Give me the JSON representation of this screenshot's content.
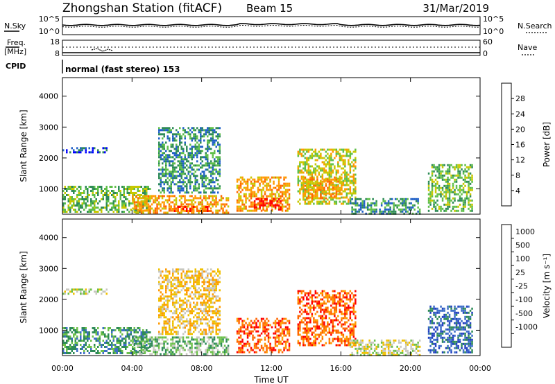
{
  "header": {
    "title": "Zhongshan Station (fitACF)",
    "beam": "Beam 15",
    "date": "31/Mar/2019"
  },
  "noise_panel": {
    "left_label": "N.Sky",
    "right_label": "N.Search",
    "left_top_tick": "10^5",
    "left_bottom_tick": "10^0",
    "right_top_tick": "10^5",
    "right_bottom_tick": "10^0"
  },
  "freq_panel": {
    "left_label_1": "Freq.",
    "left_label_2": "[MHz]",
    "left_top_tick": "18",
    "left_bottom_tick": "8",
    "right_label": "Nave",
    "right_top_tick": "60",
    "right_bottom_tick": "0"
  },
  "cpid_panel": {
    "label": "CPID",
    "text": "normal (fast stereo) 153"
  },
  "chart_data": [
    {
      "type": "heatmap",
      "title": "",
      "quantity": "Power",
      "ylabel": "Slant Range [km]",
      "xlabel": "",
      "ylim": [
        180,
        4600
      ],
      "yticks": [
        "1000",
        "2000",
        "3000",
        "4000"
      ],
      "colorbar_label": "Power [dB]",
      "colorbar_ticks": [
        "4",
        "8",
        "12",
        "16",
        "20",
        "24",
        "28"
      ],
      "colorbar_colors": [
        "#0000ff",
        "#2060c8",
        "#2e8b57",
        "#5fbf4a",
        "#c8c800",
        "#ff9900",
        "#ff6600",
        "#ff0000"
      ],
      "echo_regions": [
        {
          "t0": 0.0,
          "t1": 5.0,
          "r0": 250,
          "r1": 1100,
          "level": 3
        },
        {
          "t0": 0.0,
          "t1": 2.5,
          "r0": 2150,
          "r1": 2350,
          "level": 1
        },
        {
          "t0": 4.0,
          "t1": 9.5,
          "r0": 250,
          "r1": 800,
          "level": 5
        },
        {
          "t0": 6.0,
          "t1": 8.5,
          "r0": 250,
          "r1": 450,
          "level": 6
        },
        {
          "t0": 5.5,
          "t1": 9.0,
          "r0": 900,
          "r1": 3000,
          "level": 2
        },
        {
          "t0": 10.0,
          "t1": 13.0,
          "r0": 300,
          "r1": 1400,
          "level": 5
        },
        {
          "t0": 11.0,
          "t1": 12.5,
          "r0": 300,
          "r1": 700,
          "level": 7
        },
        {
          "t0": 13.5,
          "t1": 16.8,
          "r0": 500,
          "r1": 2300,
          "level": 4
        },
        {
          "t0": 13.8,
          "t1": 16.0,
          "r0": 700,
          "r1": 1400,
          "level": 5
        },
        {
          "t0": 16.5,
          "t1": 20.5,
          "r0": 200,
          "r1": 700,
          "level": 2
        },
        {
          "t0": 21.0,
          "t1": 23.5,
          "r0": 300,
          "r1": 1800,
          "level": 3
        }
      ]
    },
    {
      "type": "heatmap",
      "title": "",
      "quantity": "Velocity",
      "ylabel": "Slant Range [km]",
      "xlabel": "Time UT",
      "ylim": [
        180,
        4600
      ],
      "yticks": [
        "1000",
        "2000",
        "3000",
        "4000"
      ],
      "xticks": [
        "00:00",
        "04:00",
        "08:00",
        "12:00",
        "16:00",
        "20:00",
        "00:00"
      ],
      "colorbar_label": "Velocity [m s⁻¹]",
      "colorbar_ticks": [
        "1000",
        "500",
        "100",
        "25",
        "-25",
        "-100",
        "-500",
        "-1000"
      ],
      "colorbar_colors": [
        "#2040c0",
        "#3c6ec8",
        "#2e8b57",
        "#6cc04a",
        "#c8c8c0",
        "#f0c000",
        "#ff9900",
        "#ff6600",
        "#ff0000"
      ],
      "echo_regions": [
        {
          "t0": 0.0,
          "t1": 5.0,
          "r0": 250,
          "r1": 1100,
          "level": 2
        },
        {
          "t0": 0.0,
          "t1": 2.5,
          "r0": 2150,
          "r1": 2350,
          "level": 4
        },
        {
          "t0": 4.0,
          "t1": 9.5,
          "r0": 250,
          "r1": 800,
          "level": 3
        },
        {
          "t0": 5.5,
          "t1": 9.0,
          "r0": 900,
          "r1": 3000,
          "level": 5
        },
        {
          "t0": 10.0,
          "t1": 13.0,
          "r0": 300,
          "r1": 1400,
          "level": 7
        },
        {
          "t0": 13.5,
          "t1": 16.8,
          "r0": 500,
          "r1": 2300,
          "level": 7
        },
        {
          "t0": 16.5,
          "t1": 20.5,
          "r0": 200,
          "r1": 700,
          "level": 4
        },
        {
          "t0": 21.0,
          "t1": 23.5,
          "r0": 300,
          "r1": 1800,
          "level": 1
        }
      ]
    }
  ]
}
